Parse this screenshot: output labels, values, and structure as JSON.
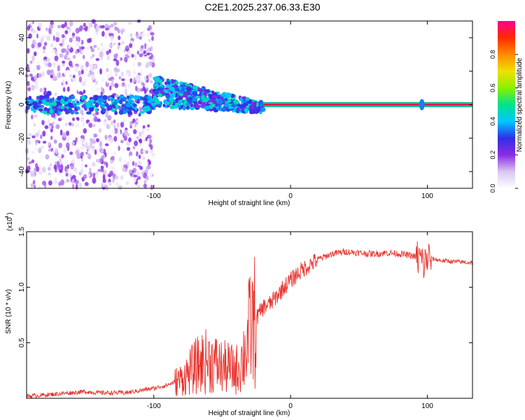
{
  "title": "C2E1.2025.237.06.33.E30",
  "colors": {
    "snr_line": "#e8302a",
    "center_line": "#e6195a",
    "center_outline": "#1aa05a",
    "colormap": [
      "#ffffff",
      "#d9c6f2",
      "#8a2be2",
      "#2f2fe6",
      "#00c8ff",
      "#00e38b",
      "#8cf000",
      "#f0e000",
      "#ff8a00",
      "#ff2a00",
      "#ff0090"
    ]
  },
  "chart_data": [
    {
      "type": "heatmap",
      "title": "C2E1.2025.237.06.33.E30",
      "xlabel": "Height of straight line (km)",
      "ylabel": "Frequency (Hz)",
      "xlim": [
        -193,
        133
      ],
      "ylim": [
        -50,
        50
      ],
      "xticks": [
        -100,
        0,
        100
      ],
      "xtick_labels": [
        "-100",
        "0",
        "100"
      ],
      "yticks": [
        -40,
        -20,
        0,
        20,
        40
      ],
      "ytick_labels": [
        "-40",
        "-20",
        "0",
        "20",
        "40"
      ],
      "colorbar": {
        "label": "Normalized spectral amplitude",
        "range": [
          0,
          1
        ],
        "ticks": [
          0.0,
          0.2,
          0.4,
          0.6,
          0.8
        ],
        "tick_labels": [
          "0.0",
          "0.2",
          "0.4",
          "0.6",
          "0.8"
        ]
      },
      "features": [
        {
          "name": "noise-band",
          "x_range": [
            -193,
            -100
          ],
          "freq_range": [
            -50,
            50
          ],
          "amplitude": 0.1
        },
        {
          "name": "dispersed-signal",
          "x_range": [
            -100,
            -20
          ],
          "freq_range": [
            -10,
            15
          ],
          "amplitude": 0.3
        },
        {
          "name": "steady-tone",
          "x_range": [
            -20,
            133
          ],
          "frequency": 0,
          "amplitude": 1.0
        },
        {
          "name": "spike",
          "x": 96,
          "frequency": 0,
          "amplitude": 0.4
        }
      ]
    },
    {
      "type": "line",
      "xlabel": "Height of straight line (km)",
      "ylabel": "SNR (10 * v/v)",
      "multiplier_label": "(x10",
      "multiplier_exp": "4",
      "xlim": [
        -193,
        133
      ],
      "ylim": [
        0,
        1.5
      ],
      "xticks": [
        -100,
        0,
        100
      ],
      "xtick_labels": [
        "-100",
        "0",
        "100"
      ],
      "yticks": [
        0.5,
        1.0,
        1.5
      ],
      "ytick_labels": [
        "0.5",
        "1.0",
        "1.5"
      ],
      "series": [
        {
          "name": "SNR",
          "x": [
            -193,
            -180,
            -160,
            -150,
            -140,
            -120,
            -110,
            -100,
            -90,
            -80,
            -75,
            -70,
            -65,
            -60,
            -55,
            -50,
            -45,
            -40,
            -35,
            -30,
            -25,
            -20,
            -15,
            -10,
            -5,
            0,
            5,
            10,
            15,
            20,
            30,
            40,
            50,
            60,
            70,
            80,
            90,
            95,
            98,
            100,
            102,
            110,
            120,
            133
          ],
          "y": [
            0.02,
            0.03,
            0.05,
            0.06,
            0.05,
            0.05,
            0.07,
            0.09,
            0.12,
            0.17,
            0.22,
            0.28,
            0.32,
            0.34,
            0.31,
            0.28,
            0.27,
            0.25,
            0.35,
            0.6,
            0.72,
            0.82,
            0.85,
            0.92,
            1.0,
            1.06,
            1.12,
            1.17,
            1.21,
            1.25,
            1.3,
            1.32,
            1.31,
            1.3,
            1.31,
            1.3,
            1.28,
            1.25,
            1.2,
            1.27,
            1.26,
            1.24,
            1.23,
            1.22
          ]
        }
      ]
    }
  ]
}
